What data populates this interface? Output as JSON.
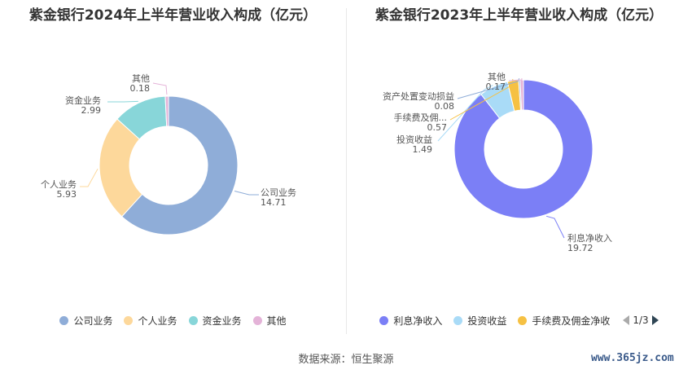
{
  "footer": {
    "source": "数据来源：恒生聚源",
    "watermark": "www.365jz.com"
  },
  "pager": {
    "text": "1/3"
  },
  "chart_data": [
    {
      "type": "pie",
      "title": "紫金银行2024年上半年营业收入构成（亿元）",
      "categories": [
        "公司业务",
        "个人业务",
        "资金业务",
        "其他"
      ],
      "values": [
        14.71,
        5.93,
        2.99,
        0.18
      ],
      "colors": [
        "#8fadd8",
        "#fdd89b",
        "#88d6d9",
        "#e4b3d8"
      ],
      "labels": [
        {
          "name": "公司业务",
          "value": "14.71"
        },
        {
          "name": "个人业务",
          "value": "5.93"
        },
        {
          "name": "资金业务",
          "value": "2.99"
        },
        {
          "name": "其他",
          "value": "0.18"
        }
      ],
      "legend": [
        "公司业务",
        "个人业务",
        "资金业务",
        "其他"
      ]
    },
    {
      "type": "pie",
      "title": "紫金银行2023年上半年营业收入构成（亿元）",
      "categories": [
        "利息净收入",
        "投资收益",
        "手续费及佣金净收入",
        "资产处置变动损益",
        "其他"
      ],
      "values": [
        19.72,
        1.49,
        0.57,
        0.08,
        0.17
      ],
      "colors": [
        "#7b7ff6",
        "#a9dbf7",
        "#f6c143",
        "#8fadd8",
        "#e4b3d8"
      ],
      "labels": [
        {
          "name": "利息净收入",
          "value": "19.72"
        },
        {
          "name": "投资收益",
          "value": "1.49"
        },
        {
          "name": "手续费及佣...",
          "value": "0.57"
        },
        {
          "name": "资产处置变动损益",
          "value": "0.08"
        },
        {
          "name": "其他",
          "value": "0.17"
        }
      ],
      "legend": [
        "利息净收入",
        "投资收益",
        "手续费及佣金净收"
      ]
    }
  ]
}
